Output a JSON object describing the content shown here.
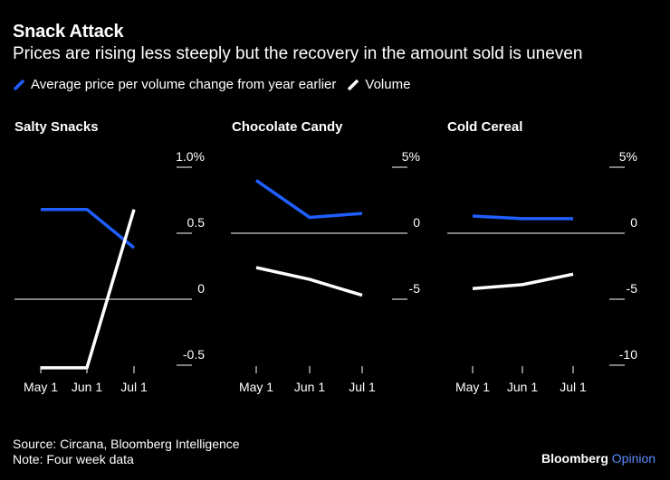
{
  "title": "Snack Attack",
  "subtitle": "Prices are rising less steeply but the recovery in the amount sold is uneven",
  "legend": {
    "price_label": "Average price per volume change from year earlier",
    "volume_label": "Volume"
  },
  "footer": {
    "source": "Source: Circana, Bloomberg Intelligence",
    "note": "Note: Four week data"
  },
  "brand": {
    "name": "Bloomberg",
    "suffix": "Opinion"
  },
  "colors": {
    "price": "#1f5fff",
    "volume": "#ffffff",
    "background": "#000000"
  },
  "chart_data": [
    {
      "type": "line",
      "title": "Salty Snacks",
      "categories": [
        "May 1",
        "Jun 1",
        "Jul 1"
      ],
      "ylim": [
        -0.6,
        1.0
      ],
      "y_ticks": [
        1.0,
        0.5,
        0,
        -0.5
      ],
      "y_tick_labels": [
        "1.0%",
        "0.5",
        "0",
        "-0.5"
      ],
      "series": [
        {
          "name": "Average price per volume change from year earlier",
          "values": [
            0.68,
            0.68,
            0.39
          ]
        },
        {
          "name": "Volume",
          "values": [
            -0.52,
            -0.52,
            0.68
          ]
        }
      ]
    },
    {
      "type": "line",
      "title": "Chocolate Candy",
      "categories": [
        "May 1",
        "Jun 1",
        "Jul 1"
      ],
      "ylim": [
        -6,
        5
      ],
      "y_ticks": [
        5,
        0,
        -5
      ],
      "y_tick_labels": [
        "5%",
        "0",
        "-5"
      ],
      "series": [
        {
          "name": "Average price per volume change from year earlier",
          "values": [
            4.0,
            1.2,
            1.5
          ]
        },
        {
          "name": "Volume",
          "values": [
            -2.6,
            -3.5,
            -4.7
          ]
        }
      ]
    },
    {
      "type": "line",
      "title": "Cold Cereal",
      "categories": [
        "May 1",
        "Jun 1",
        "Jul 1"
      ],
      "ylim": [
        -11,
        5
      ],
      "y_ticks": [
        5,
        0,
        -5,
        -10
      ],
      "y_tick_labels": [
        "5%",
        "0",
        "-5",
        "-10"
      ],
      "series": [
        {
          "name": "Average price per volume change from year earlier",
          "values": [
            1.3,
            1.1,
            1.1
          ]
        },
        {
          "name": "Volume",
          "values": [
            -4.2,
            -3.9,
            -3.1
          ]
        }
      ]
    }
  ]
}
